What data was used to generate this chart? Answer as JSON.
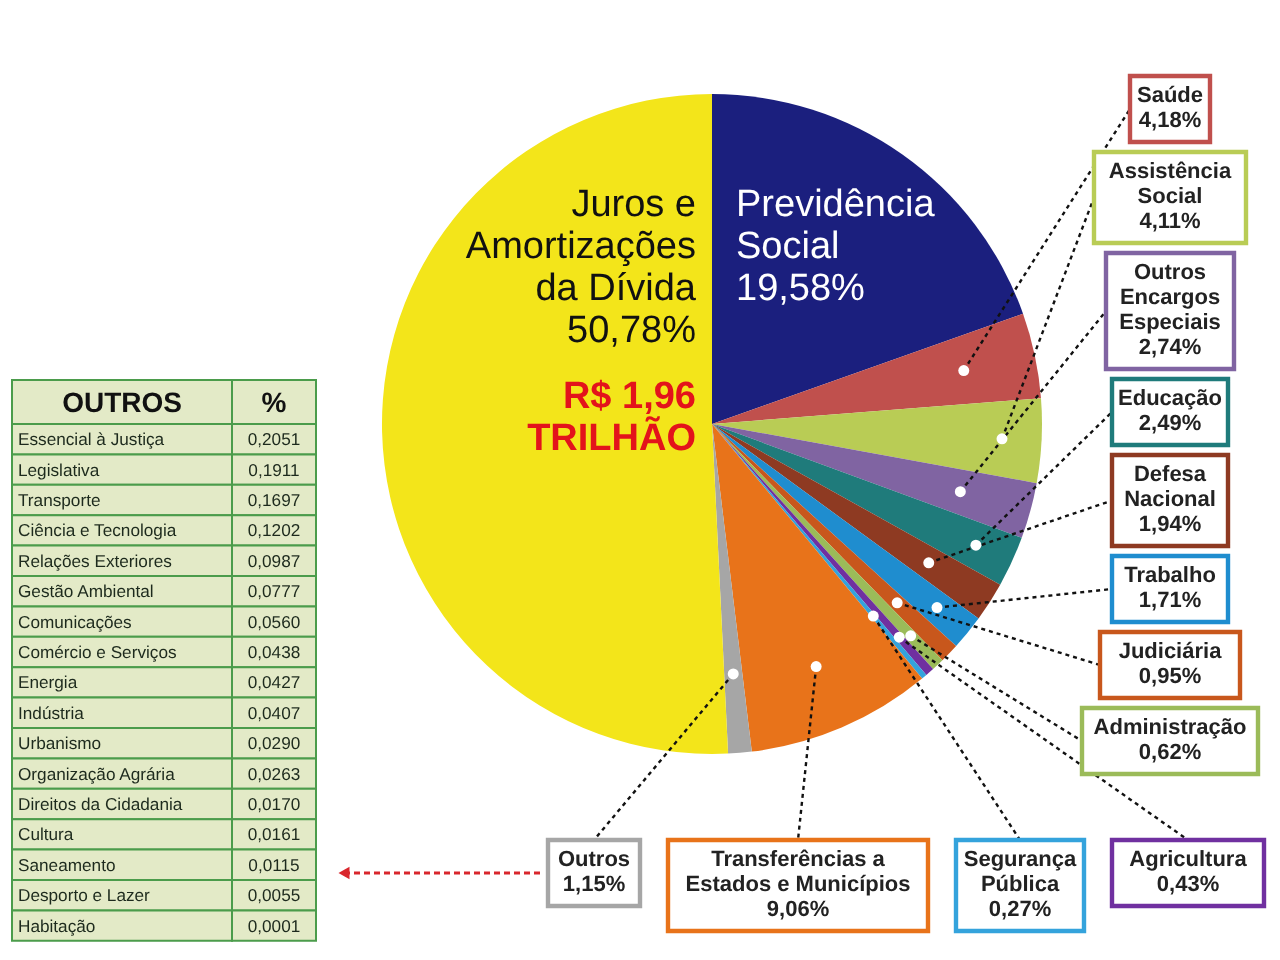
{
  "chart_data": [
    {
      "type": "other",
      "title": "OUTROS",
      "xlabel": "%",
      "categories": [
        "Essencial à Justiça",
        "Legislativa",
        "Transporte",
        "Ciência e Tecnologia",
        "Relações Exteriores",
        "Gestão Ambiental",
        "Comunicações",
        "Comércio e Serviços",
        "Energia",
        "Indústria",
        "Urbanismo",
        "Organização Agrária",
        "Direitos da Cidadania",
        "Cultura",
        "Saneamento",
        "Desporto e Lazer",
        "Habitação"
      ],
      "value_labels": [
        "0,2051",
        "0,1911",
        "0,1697",
        "0,1202",
        "0,0987",
        "0,0777",
        "0,0560",
        "0,0438",
        "0,0427",
        "0,0407",
        "0,0290",
        "0,0263",
        "0,0170",
        "0,0161",
        "0,0115",
        "0,0055",
        "0,0001"
      ]
    },
    {
      "type": "pie",
      "categories": [
        "Previdência Social",
        "Saúde",
        "Assistência Social",
        "Outros Encargos Especiais",
        "Educação",
        "Defesa Nacional",
        "Trabalho",
        "Judiciária",
        "Administração",
        "Agricultura",
        "Segurança Pública",
        "Transferências a Estados e Municípios",
        "Outros",
        "Juros e Amortizações da Dívida"
      ],
      "values": [
        19.58,
        4.18,
        4.11,
        2.74,
        2.49,
        1.94,
        1.71,
        0.95,
        0.62,
        0.43,
        0.27,
        9.06,
        1.15,
        50.78
      ],
      "colors": [
        "#1b1f7e",
        "#c0504d",
        "#b9cc55",
        "#8064a2",
        "#1f7b7b",
        "#8e3a22",
        "#1f8dcf",
        "#c8571c",
        "#9bbb59",
        "#7030a0",
        "#34a3dc",
        "#e8731a",
        "#a6a6a6",
        "#f3e51a"
      ],
      "value_labels": [
        "19,58%",
        "4,18%",
        "4,11%",
        "2,74%",
        "2,49%",
        "1,94%",
        "1,71%",
        "0,95%",
        "0,62%",
        "0,43%",
        "0,27%",
        "9,06%",
        "1,15%",
        "50,78%"
      ],
      "annotations": [
        "R$ 1,96 TRILHÃO"
      ]
    }
  ]
}
